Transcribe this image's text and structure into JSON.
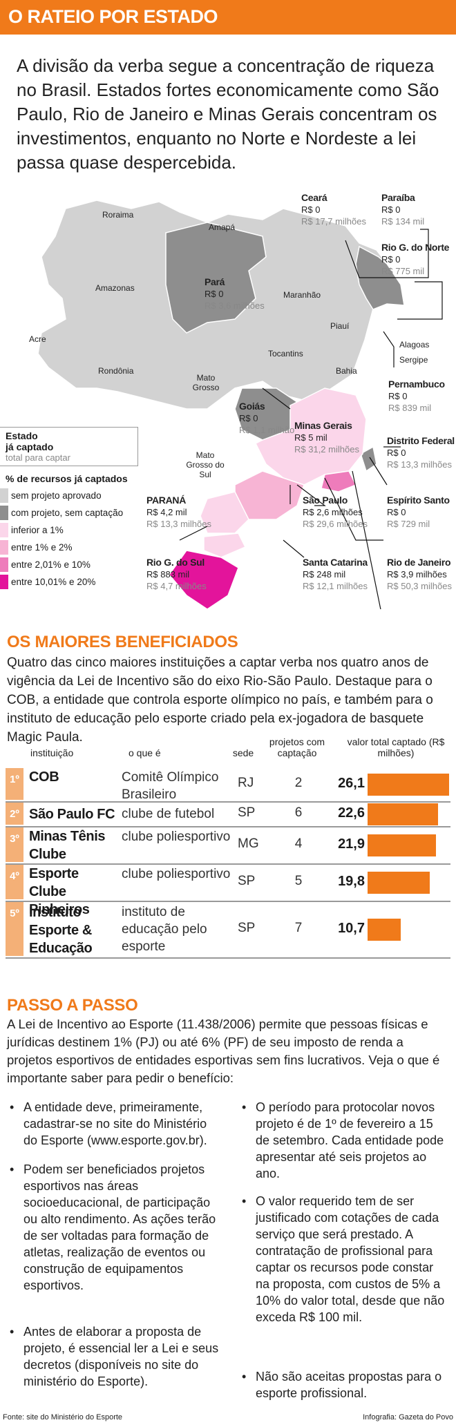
{
  "header": {
    "title": "O RATEIO POR ESTADO",
    "intro": "A divisão da verba segue a concentração de riqueza no Brasil. Estados fortes economicamente como São Paulo, Rio de Janeiro e Minas Gerais concentram os investimentos, enquanto no Norte e Nordeste a lei passa quase despercebida."
  },
  "map": {
    "plain_labels": {
      "roraima": "Roraima",
      "amapa": "Amapá",
      "amazonas": "Amazonas",
      "acre": "Acre",
      "rondonia": "Rondônia",
      "maranhao": "Maranhão",
      "piaui": "Piauí",
      "tocantins": "Tocantins",
      "bahia": "Bahia",
      "mato_grosso": "Mato Grosso",
      "ms": "Mato Grosso do Sul",
      "alagoas": "Alagoas",
      "sergipe": "Sergipe"
    },
    "states": [
      {
        "name": "Ceará",
        "amount": "R$ 0",
        "total": "R$ 17,7 milhões"
      },
      {
        "name": "Paraíba",
        "amount": "R$ 0",
        "total": "R$ 134 mil"
      },
      {
        "name": "Rio G. do Norte",
        "amount": "R$ 0",
        "total": "R$ 775 mil"
      },
      {
        "name": "Pará",
        "amount": "R$ 0",
        "total": "R$ 3,6 milhões"
      },
      {
        "name": "Pernambuco",
        "amount": "R$ 0",
        "total": "R$ 839 mil"
      },
      {
        "name": "Goiás",
        "amount": "R$ 0",
        "total": "R$ 1,1 milhão"
      },
      {
        "name": "Minas Gerais",
        "amount": "R$ 5 mil",
        "total": "R$ 31,2 milhões"
      },
      {
        "name": "Distrito Federal",
        "amount": "R$ 0",
        "total": "R$ 13,3 milhões"
      },
      {
        "name": "PARANÁ",
        "amount": "R$ 4,2 mil",
        "total": "R$ 13,3 milhões"
      },
      {
        "name": "São Paulo",
        "amount": "R$ 2,6 milhões",
        "total": "R$ 29,6 milhões"
      },
      {
        "name": "Espírito Santo",
        "amount": "R$ 0",
        "total": "R$ 729 mil"
      },
      {
        "name": "Rio G. do Sul",
        "amount": "R$ 883 mil",
        "total": "R$ 4,7 milhões"
      },
      {
        "name": "Santa Catarina",
        "amount": "R$ 248 mil",
        "total": "R$ 12,1 milhões"
      },
      {
        "name": "Rio de Janeiro",
        "amount": "R$ 3,9 milhões",
        "total": "R$ 50,3 milhões"
      }
    ],
    "legend": {
      "key_title": "Estado",
      "key_captado": "já captado",
      "key_total": "total para captar",
      "heading": "% de recursos já captados",
      "items": [
        {
          "label": "sem projeto aprovado",
          "color": "#d2d2d2"
        },
        {
          "label": "com projeto, sem captação",
          "color": "#8e8e8e"
        },
        {
          "label": "inferior a 1%",
          "color": "#fbd6ea"
        },
        {
          "label": "entre 1% e 2%",
          "color": "#f7b4d4"
        },
        {
          "label": "entre 2,01% e 10%",
          "color": "#ee7cbb"
        },
        {
          "label": "entre 10,01% e 20%",
          "color": "#e3149b"
        }
      ]
    }
  },
  "beneficiados": {
    "title": "OS MAIORES BENEFICIADOS",
    "text": "Quatro das cinco maiores instituições a captar verba nos quatro anos de vigência da Lei de Incentivo são do eixo Rio-São Paulo. Destaque para o COB, a entidade que controla esporte olímpico no país, e também para o instituto de educação pelo esporte criado pela ex-jogadora de basquete Magic Paula.",
    "headers": {
      "inst": "instituição",
      "what": "o que é",
      "sede": "sede",
      "proj": "projetos com captação",
      "val": "valor total captado (R$ milhões)"
    },
    "rows": [
      {
        "rank": "1º",
        "inst": "COB",
        "what": "Comitê Olímpico Brasileiro",
        "sede": "RJ",
        "proj": "2",
        "val": "26,1",
        "value": 26.1
      },
      {
        "rank": "2º",
        "inst": "São Paulo FC",
        "what": "clube de futebol",
        "sede": "SP",
        "proj": "6",
        "val": "22,6",
        "value": 22.6
      },
      {
        "rank": "3º",
        "inst": "Minas Tênis Clube",
        "what": "clube poliesportivo",
        "sede": "MG",
        "proj": "4",
        "val": "21,9",
        "value": 21.9
      },
      {
        "rank": "4º",
        "inst": "Esporte Clube Pinheiros",
        "what": "clube poliesportivo",
        "sede": "SP",
        "proj": "5",
        "val": "19,8",
        "value": 19.8
      },
      {
        "rank": "5º",
        "inst": "Instituto Esporte & Educação",
        "what": "instituto de educação pelo esporte",
        "sede": "SP",
        "proj": "7",
        "val": "10,7",
        "value": 10.7
      }
    ]
  },
  "passo": {
    "title": "PASSO A PASSO",
    "text": "A Lei de Incentivo ao Esporte (11.438/2006) permite que pessoas físicas e jurídicas destinem 1% (PJ) ou até 6% (PF) de seu imposto de renda a projetos esportivos de entidades esportivas sem fins lucrativos. Veja o que é importante saber para pedir o benefício:",
    "left": [
      "A entidade deve, primeiramente, cadastrar-se no site do Ministério do Esporte (www.esporte.gov.br).",
      "Podem ser beneficiados projetos esportivos nas áreas socioeducacional, de participação ou alto rendimento. As ações terão de ser voltadas para formação de atletas, realização de eventos ou construção de equipamentos esportivos.",
      "Antes de elaborar a proposta de projeto, é essencial ler a Lei e seus decretos (disponíveis no site do ministério do Esporte)."
    ],
    "right": [
      "O período para protocolar novos projeto é de 1º de fevereiro a 15 de setembro. Cada entidade pode apresentar até seis projetos ao ano.",
      "O valor requerido tem de ser justificado com cotações de cada serviço que será prestado. A contratação de profissional para captar os recursos pode constar na proposta, com custos de 5% a 10% do valor total, desde que não exceda R$ 100 mil.",
      "Não são aceitas propostas para o esporte profissional."
    ]
  },
  "footer": {
    "source": "Fonte: site do Ministério do Esporte",
    "credit": "Infografia: Gazeta do Povo"
  }
}
